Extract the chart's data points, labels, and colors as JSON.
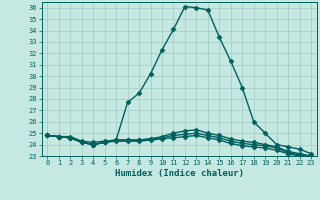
{
  "xlabel": "Humidex (Indice chaleur)",
  "bg_color": "#c5e8e0",
  "grid_color": "#a8cfc8",
  "line_color": "#006060",
  "x_values": [
    0,
    1,
    2,
    3,
    4,
    5,
    6,
    7,
    8,
    9,
    10,
    11,
    12,
    13,
    14,
    15,
    16,
    17,
    18,
    19,
    20,
    21,
    22,
    23
  ],
  "series": [
    [
      24.8,
      24.7,
      24.7,
      24.3,
      24.2,
      24.3,
      24.4,
      27.7,
      28.5,
      30.2,
      32.3,
      34.1,
      36.1,
      36.0,
      35.8,
      33.4,
      31.3,
      29.0,
      26.0,
      25.0,
      24.0,
      23.8,
      23.6,
      23.2
    ],
    [
      24.8,
      24.7,
      24.6,
      24.2,
      24.0,
      24.2,
      24.4,
      24.4,
      24.4,
      24.5,
      24.7,
      25.0,
      25.2,
      25.3,
      25.0,
      24.8,
      24.5,
      24.3,
      24.2,
      24.0,
      23.8,
      23.4,
      23.2,
      23.0
    ],
    [
      24.8,
      24.7,
      24.6,
      24.2,
      24.0,
      24.2,
      24.4,
      24.4,
      24.4,
      24.5,
      24.6,
      24.8,
      24.9,
      25.0,
      24.8,
      24.6,
      24.3,
      24.1,
      24.0,
      23.9,
      23.7,
      23.3,
      23.1,
      22.9
    ],
    [
      24.8,
      24.7,
      24.6,
      24.2,
      24.0,
      24.2,
      24.3,
      24.3,
      24.3,
      24.4,
      24.5,
      24.6,
      24.7,
      24.8,
      24.6,
      24.4,
      24.1,
      23.9,
      23.8,
      23.7,
      23.5,
      23.2,
      23.0,
      22.8
    ]
  ],
  "xlim": [
    -0.5,
    23.5
  ],
  "ylim": [
    23.0,
    36.5
  ],
  "yticks": [
    23,
    24,
    25,
    26,
    27,
    28,
    29,
    30,
    31,
    32,
    33,
    34,
    35,
    36
  ],
  "xticks": [
    0,
    1,
    2,
    3,
    4,
    5,
    6,
    7,
    8,
    9,
    10,
    11,
    12,
    13,
    14,
    15,
    16,
    17,
    18,
    19,
    20,
    21,
    22,
    23
  ],
  "marker": "D",
  "marker_size": 2.5,
  "linewidth": 1.0
}
